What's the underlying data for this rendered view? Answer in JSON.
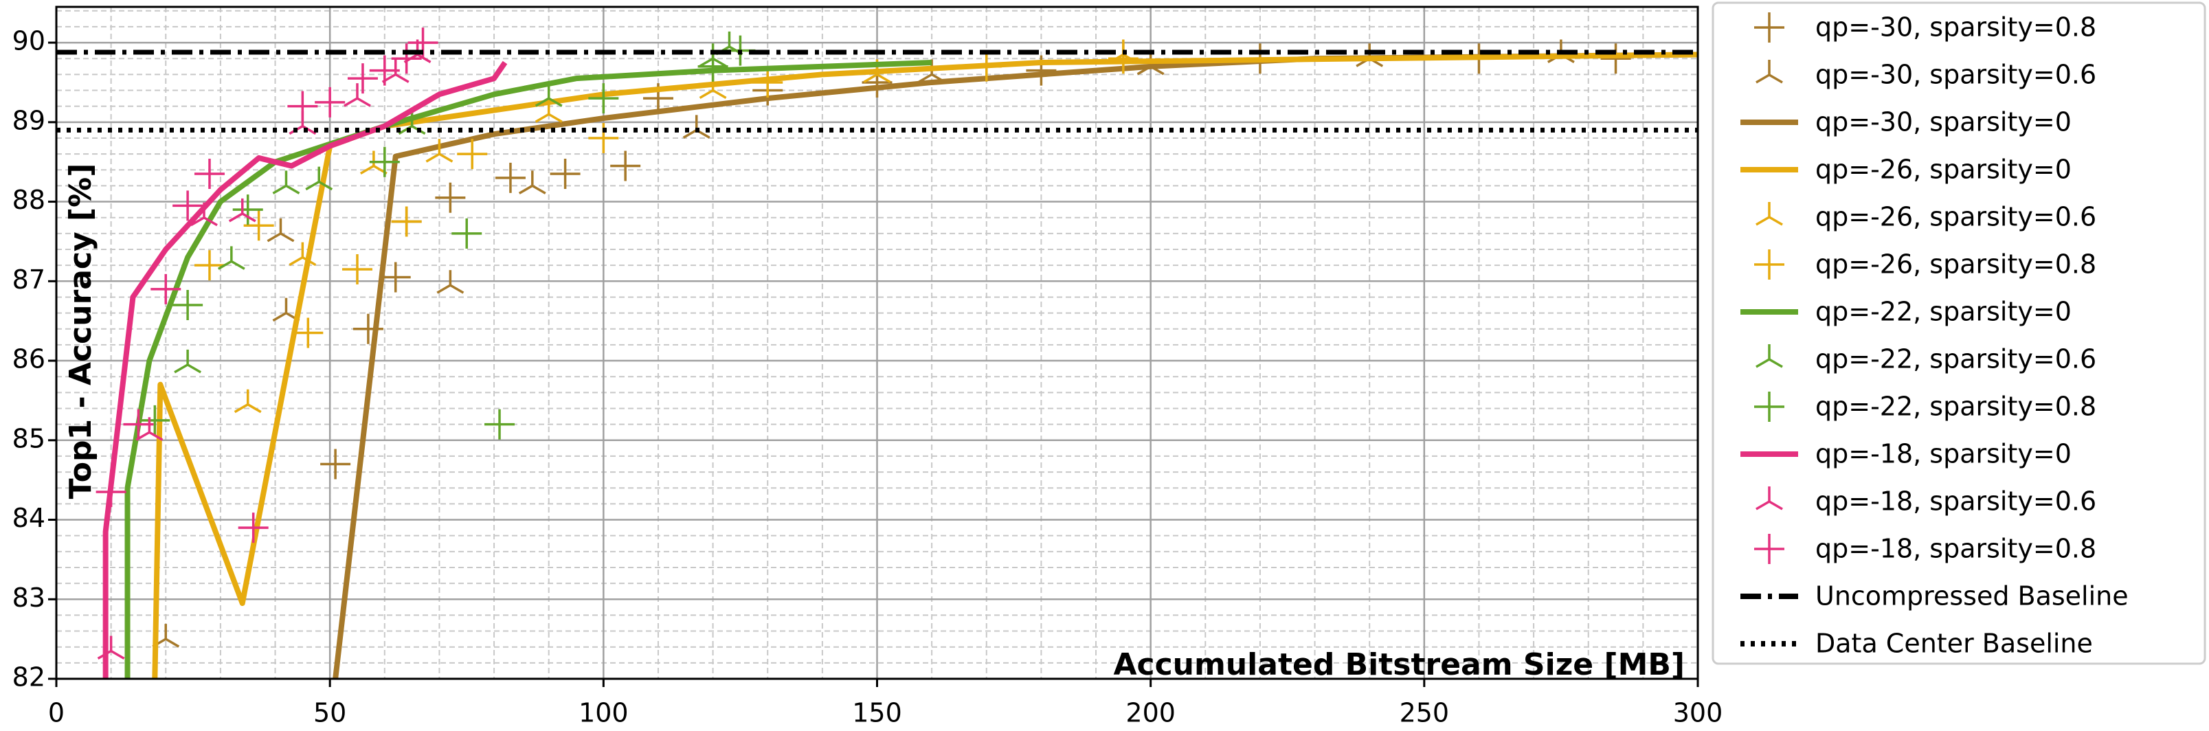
{
  "chart_data": {
    "type": "line",
    "xlabel": "Accumulated Bitstream Size [MB]",
    "ylabel": "Top1 - Accuracy [%]",
    "xlim": [
      0,
      300
    ],
    "xticks": [
      0,
      50,
      100,
      150,
      200,
      250,
      300
    ],
    "ylim": [
      82,
      90.45
    ],
    "yticks": [
      82,
      83,
      84,
      85,
      86,
      87,
      88,
      89,
      90
    ],
    "grid": true,
    "minor_grid": true,
    "legend": "outside right",
    "series": [
      {
        "name": "qp=-30, sparsity=0.8",
        "kind": "plus",
        "color": "#a6792a",
        "x": [
          51,
          57,
          62,
          64,
          72,
          83,
          93,
          104,
          110,
          130,
          150,
          180,
          220,
          260,
          285
        ],
        "values": [
          84.7,
          86.4,
          87.05,
          87.75,
          88.05,
          88.3,
          88.35,
          88.45,
          89.3,
          89.4,
          89.5,
          89.65,
          89.8,
          89.8,
          89.8
        ]
      },
      {
        "name": "qp=-30, sparsity=0.6",
        "kind": "tri",
        "color": "#a6792a",
        "x": [
          20,
          42,
          72,
          41,
          87,
          117,
          160,
          200,
          240,
          275
        ],
        "values": [
          82.5,
          86.6,
          86.95,
          87.6,
          88.2,
          88.9,
          89.6,
          89.7,
          89.8,
          89.85
        ]
      },
      {
        "name": "qp=-30, sparsity=0",
        "kind": "line",
        "color": "#a6792a",
        "x": [
          51,
          62,
          80,
          100,
          130,
          160,
          200,
          230,
          300
        ],
        "values": [
          82,
          88.57,
          88.85,
          89.05,
          89.3,
          89.5,
          89.7,
          89.8,
          89.85
        ]
      },
      {
        "name": "qp=-26, sparsity=0",
        "kind": "line",
        "color": "#e6ab0f",
        "x": [
          18,
          19,
          34,
          50,
          60,
          100,
          140,
          180,
          300
        ],
        "values": [
          82,
          85.7,
          82.95,
          88.7,
          88.95,
          89.35,
          89.6,
          89.75,
          89.85
        ]
      },
      {
        "name": "qp=-26, sparsity=0.6",
        "kind": "tri",
        "color": "#e6ab0f",
        "x": [
          35,
          45,
          58,
          70,
          90,
          120,
          150,
          195
        ],
        "values": [
          85.45,
          87.3,
          88.45,
          88.6,
          89.1,
          89.4,
          89.6,
          89.85
        ]
      },
      {
        "name": "qp=-26, sparsity=0.8",
        "kind": "plus",
        "color": "#e6ab0f",
        "x": [
          28,
          37,
          46,
          55,
          64,
          76,
          100,
          130,
          170,
          195
        ],
        "values": [
          87.2,
          87.7,
          86.35,
          87.15,
          87.75,
          88.6,
          88.8,
          89.5,
          89.7,
          89.8
        ]
      },
      {
        "name": "qp=-22, sparsity=0",
        "kind": "line",
        "color": "#62a52a",
        "x": [
          13,
          13,
          17,
          24,
          30,
          40,
          60,
          80,
          95,
          120,
          160
        ],
        "values": [
          82,
          84.4,
          86,
          87.3,
          88,
          88.5,
          88.95,
          89.35,
          89.55,
          89.65,
          89.75
        ]
      },
      {
        "name": "qp=-22, sparsity=0.6",
        "kind": "tri",
        "color": "#62a52a",
        "x": [
          24,
          32,
          42,
          48,
          65,
          90,
          120,
          123
        ],
        "values": [
          85.95,
          87.25,
          88.2,
          88.25,
          88.95,
          89.3,
          89.8,
          89.95
        ]
      },
      {
        "name": "qp=-22, sparsity=0.8",
        "kind": "plus",
        "color": "#62a52a",
        "x": [
          18,
          24,
          35,
          60,
          75,
          81,
          100,
          120,
          125
        ],
        "values": [
          85.25,
          86.7,
          87.9,
          88.5,
          87.6,
          85.2,
          89.3,
          89.7,
          89.9
        ]
      },
      {
        "name": "qp=-18, sparsity=0",
        "kind": "line",
        "color": "#e4307f",
        "x": [
          9,
          9,
          14,
          20,
          30,
          37,
          43,
          50,
          60,
          70,
          80,
          82
        ],
        "values": [
          82,
          83.85,
          86.8,
          87.4,
          88.15,
          88.55,
          88.45,
          88.7,
          88.95,
          89.35,
          89.55,
          89.75
        ]
      },
      {
        "name": "qp=-18, sparsity=0.6",
        "kind": "tri",
        "color": "#e4307f",
        "x": [
          10,
          17,
          27,
          34,
          45,
          55,
          62,
          66
        ],
        "values": [
          82.35,
          85.1,
          87.8,
          87.85,
          88.95,
          89.3,
          89.6,
          89.85
        ]
      },
      {
        "name": "qp=-18, sparsity=0.8",
        "kind": "plus",
        "color": "#e4307f",
        "x": [
          10,
          15,
          20,
          24,
          28,
          36,
          45,
          50,
          56,
          60,
          64,
          67
        ],
        "values": [
          84.35,
          85.2,
          86.9,
          87.95,
          88.35,
          83.9,
          89.2,
          89.25,
          89.55,
          89.65,
          89.8,
          90
        ]
      },
      {
        "name": "Uncompressed Baseline",
        "kind": "hline",
        "style": "dashdot",
        "color": "#000000",
        "y": 89.88
      },
      {
        "name": "Data Center Baseline",
        "kind": "hline",
        "style": "dotted",
        "color": "#000000",
        "y": 88.9
      }
    ]
  }
}
